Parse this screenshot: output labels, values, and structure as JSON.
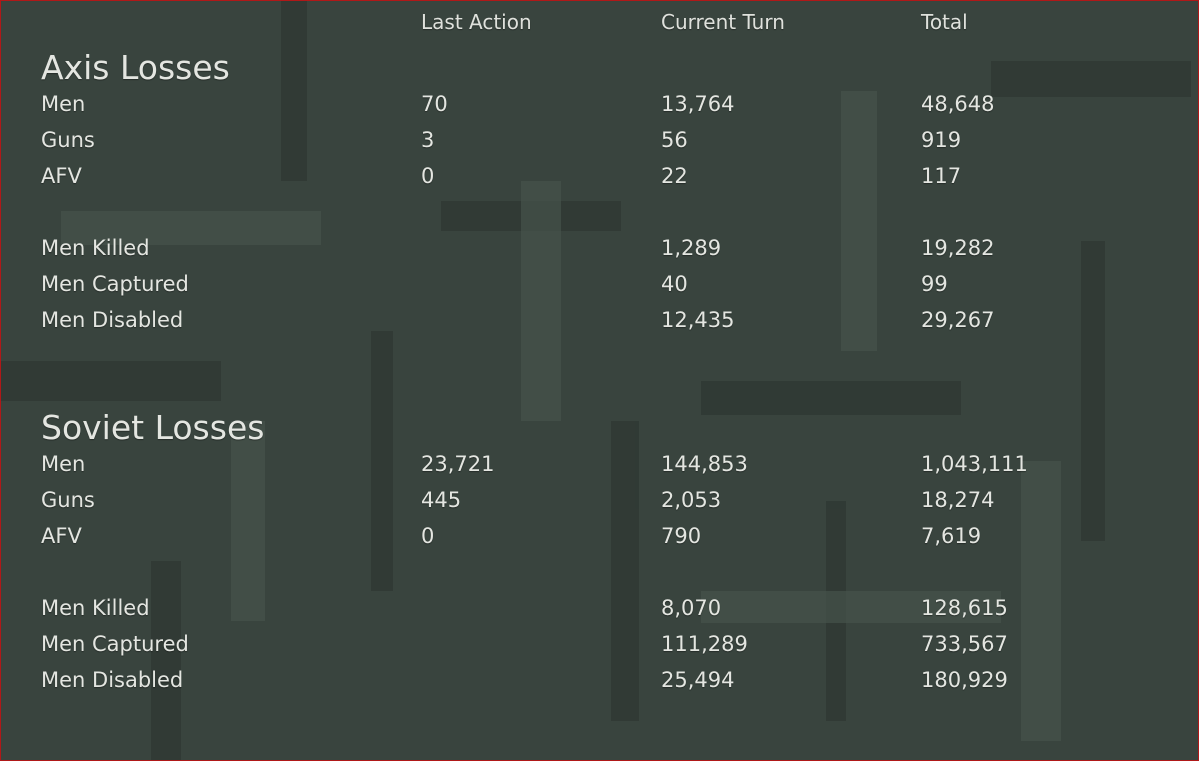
{
  "headers": [
    "Last Action",
    "Current Turn",
    "Total"
  ],
  "sections": [
    {
      "title": "Axis Losses",
      "groups": [
        [
          {
            "label": "Men",
            "last_action": "70",
            "current_turn": "13,764",
            "total": "48,648"
          },
          {
            "label": "Guns",
            "last_action": "3",
            "current_turn": "56",
            "total": "919"
          },
          {
            "label": "AFV",
            "last_action": "0",
            "current_turn": "22",
            "total": "117"
          }
        ],
        [
          {
            "label": "Men Killed",
            "current_turn": "1,289",
            "total": "19,282"
          },
          {
            "label": "Men Captured",
            "current_turn": "40",
            "total": "99"
          },
          {
            "label": "Men Disabled",
            "current_turn": "12,435",
            "total": "29,267"
          }
        ]
      ]
    },
    {
      "title": "Soviet Losses",
      "groups": [
        [
          {
            "label": "Men",
            "last_action": "23,721",
            "current_turn": "144,853",
            "total": "1,043,111"
          },
          {
            "label": "Guns",
            "last_action": "445",
            "current_turn": "2,053",
            "total": "18,274"
          },
          {
            "label": "AFV",
            "last_action": "0",
            "current_turn": "790",
            "total": "7,619"
          }
        ],
        [
          {
            "label": "Men Killed",
            "current_turn": "8,070",
            "total": "128,615"
          },
          {
            "label": "Men Captured",
            "current_turn": "111,289",
            "total": "733,567"
          },
          {
            "label": "Men Disabled",
            "current_turn": "25,494",
            "total": "180,929"
          }
        ]
      ]
    }
  ]
}
